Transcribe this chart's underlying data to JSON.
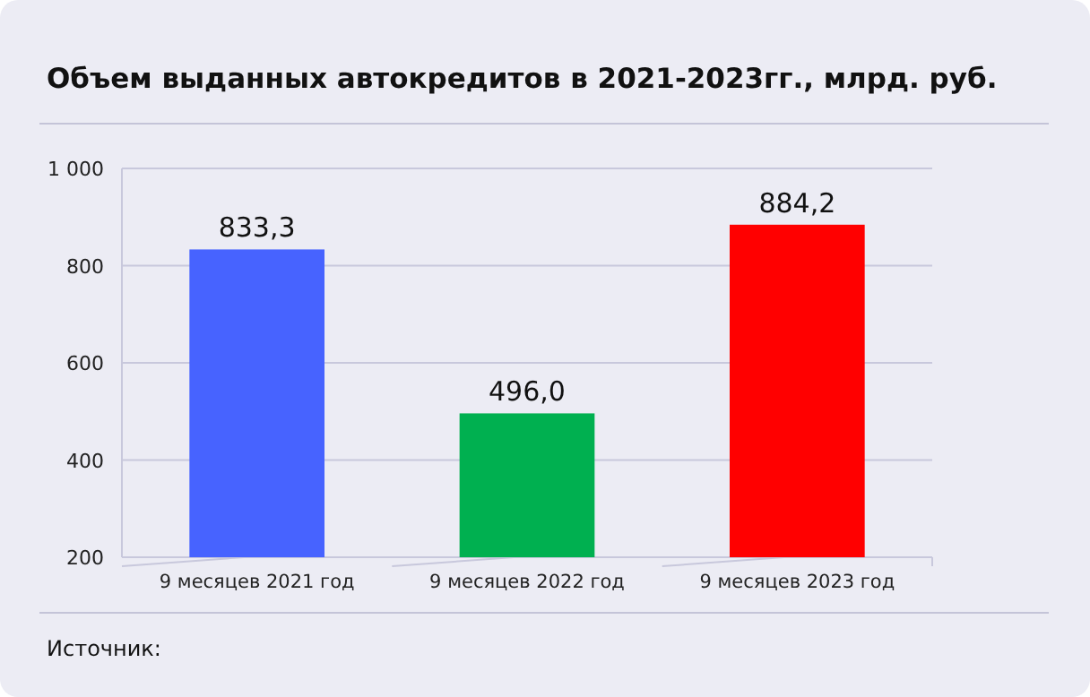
{
  "chart_data": {
    "type": "bar",
    "title": "Объем выданных автокредитов в 2021-2023гг., млрд. руб.",
    "categories": [
      "9 месяцев 2021 год",
      "9 месяцев 2022 год",
      "9 месяцев 2023 год"
    ],
    "values": [
      833.3,
      496.0,
      884.2
    ],
    "colors": [
      "#4763ff",
      "#00b050",
      "#ff0000"
    ],
    "value_labels": [
      "833,3",
      "496,0",
      "884,2"
    ],
    "ylim": [
      200,
      1000
    ],
    "yticks": [
      200,
      400,
      600,
      800,
      {
        "value": 1000,
        "label": "1 000"
      }
    ],
    "grid": "y",
    "annotations": [
      "Источник:"
    ]
  }
}
